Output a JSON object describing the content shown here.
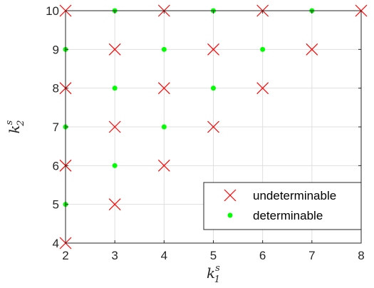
{
  "chart_data": {
    "type": "scatter",
    "x": [
      2,
      3,
      4,
      5,
      6,
      7,
      8
    ],
    "xlim": [
      2,
      8
    ],
    "ylim": [
      4,
      10
    ],
    "xticks": [
      "2",
      "3",
      "4",
      "5",
      "6",
      "7",
      "8"
    ],
    "yticks": [
      "4",
      "5",
      "6",
      "7",
      "8",
      "9",
      "10"
    ],
    "xlabel": {
      "base": "k",
      "sup": "s",
      "sub": "1"
    },
    "ylabel": {
      "base": "k",
      "sup": "s",
      "sub": "2"
    },
    "grid": true,
    "legend_position": "bottom-right",
    "series": [
      {
        "name": "undeterminable",
        "marker": "x",
        "color": "#ff0000",
        "points": [
          [
            2,
            4
          ],
          [
            2,
            6
          ],
          [
            2,
            8
          ],
          [
            2,
            10
          ],
          [
            3,
            5
          ],
          [
            3,
            7
          ],
          [
            3,
            9
          ],
          [
            4,
            6
          ],
          [
            4,
            8
          ],
          [
            4,
            10
          ],
          [
            5,
            7
          ],
          [
            5,
            9
          ],
          [
            6,
            8
          ],
          [
            6,
            10
          ],
          [
            7,
            9
          ],
          [
            8,
            10
          ]
        ]
      },
      {
        "name": "determinable",
        "marker": "dot",
        "color": "#00ff00",
        "points": [
          [
            2,
            5
          ],
          [
            2,
            7
          ],
          [
            2,
            9
          ],
          [
            3,
            6
          ],
          [
            3,
            8
          ],
          [
            3,
            10
          ],
          [
            4,
            7
          ],
          [
            4,
            9
          ],
          [
            5,
            8
          ],
          [
            5,
            10
          ],
          [
            6,
            9
          ],
          [
            7,
            10
          ]
        ]
      }
    ]
  }
}
